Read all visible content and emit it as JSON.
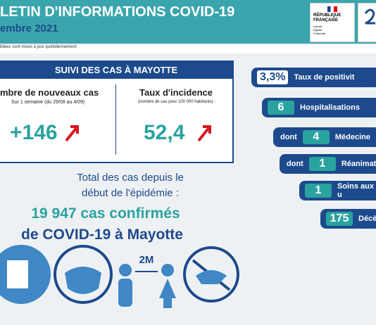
{
  "header": {
    "title": "LETIN D'INFORMATIONS COVID-19",
    "date": "embre 2021",
    "note": "bliées sont mises à jour quotidiennement",
    "logo": {
      "name": "RÉPUBLIQUE FRANÇAISE",
      "motto": "Liberté Égalité Fraternité"
    }
  },
  "panel": {
    "title": "SUIVI DES CAS À MAYOTTE",
    "left": {
      "label": "mbre de nouveaux cas",
      "sub": "Sur 1 semaine (du 29/08 au 4/09)",
      "value": "+146"
    },
    "right": {
      "label": "Taux d'incidence",
      "sub": "(nombre de cas pour 100 000 habitants) :",
      "value": "52,4"
    }
  },
  "total": {
    "intro": "Total des cas depuis le début de l'épidémie :",
    "count": "19 947 cas confirmés",
    "rest": "de COVID-19 à Mayotte"
  },
  "list": [
    {
      "value": "3,3%",
      "label": "Taux de positivit"
    },
    {
      "value": "6",
      "label": "Hospitalisations"
    },
    {
      "prefix": "dont",
      "value": "4",
      "label": "Médecine"
    },
    {
      "prefix": "dont",
      "value": "1",
      "label": "Réanimation"
    },
    {
      "value": "1",
      "label": "Soins aux u"
    },
    {
      "value": "175",
      "label": "Décè"
    }
  ],
  "icons": {
    "distance": "2M"
  }
}
